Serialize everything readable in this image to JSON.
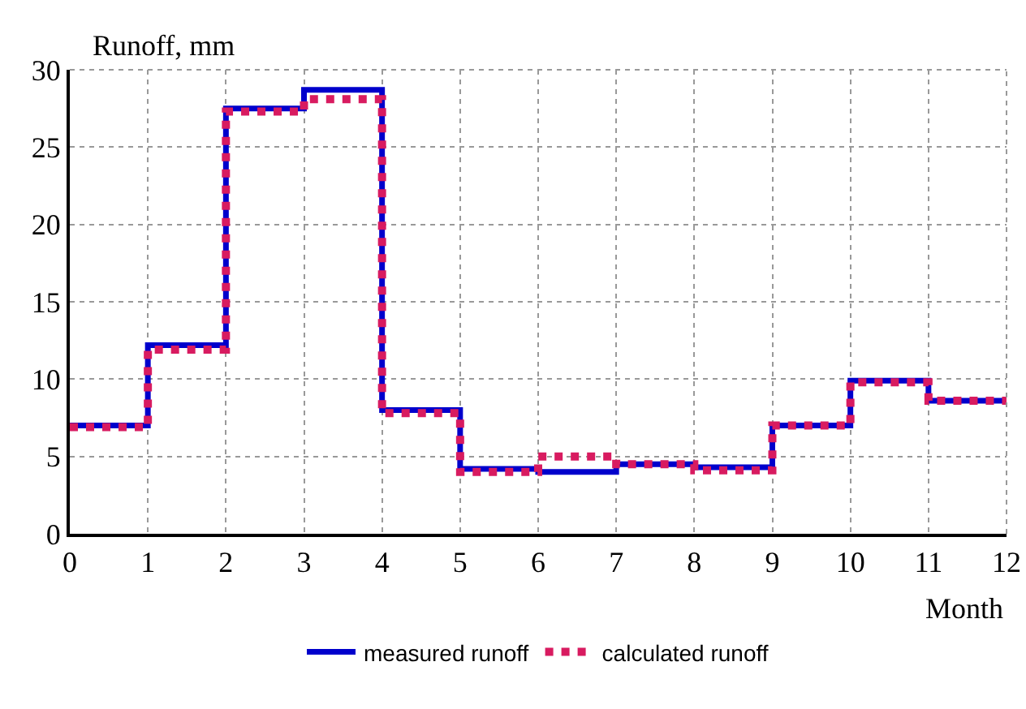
{
  "chart_data": {
    "type": "step",
    "xlabel": "Month",
    "ylabel": "Runoff, mm",
    "x": [
      0,
      1,
      2,
      3,
      4,
      5,
      6,
      7,
      8,
      9,
      10,
      11,
      12
    ],
    "series": [
      {
        "name": "measured runoff",
        "color": "#0000cc",
        "line_style": "solid",
        "values": [
          7.0,
          12.2,
          27.5,
          28.7,
          8.0,
          4.2,
          4.0,
          4.5,
          4.3,
          7.0,
          9.9,
          8.6,
          8.6
        ]
      },
      {
        "name": "calculated runoff",
        "color": "#d81b60",
        "line_style": "dotted",
        "values": [
          6.9,
          11.9,
          27.3,
          28.1,
          7.8,
          4.0,
          5.0,
          4.5,
          4.1,
          7.0,
          9.8,
          8.6,
          8.6
        ]
      }
    ],
    "xlim": [
      0,
      12
    ],
    "xticks": [
      0,
      1,
      2,
      3,
      4,
      5,
      6,
      7,
      8,
      9,
      10,
      11,
      12
    ],
    "ylim": [
      0,
      30
    ],
    "yticks": [
      0,
      5,
      10,
      15,
      20,
      25,
      30
    ],
    "grid": true,
    "legend": "bottom"
  }
}
